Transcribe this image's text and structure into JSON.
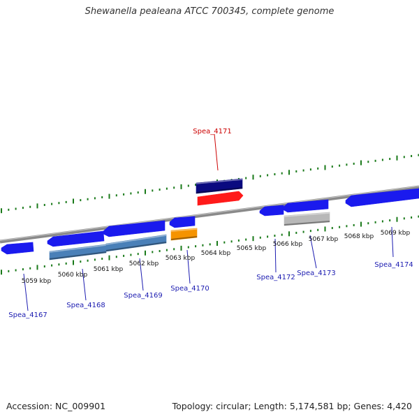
{
  "title": "Shewanella pealeana ATCC 700345, complete genome",
  "footer": {
    "accession": "Accession: NC_009901",
    "summary": "Topology: circular; Length: 5,174,581 bp; Genes: 4,420"
  },
  "colors": {
    "backbone": "#8a8a8a",
    "ticks": "#1a7a1a",
    "gene_blue": "#1a1aee",
    "gene_navy": "#0a0a80",
    "gene_red": "#ff1a1a",
    "gene_steel": "#4a80b8",
    "gene_orange": "#f59300",
    "gene_gray": "#b8b8b8",
    "label_blue": "#1a1ab0",
    "label_red": "#cc0000"
  },
  "kbp_labels": [
    {
      "text": "5059 kbp",
      "anchor": [
        52,
        405
      ]
    },
    {
      "text": "5060 kbp",
      "anchor": [
        104,
        396
      ]
    },
    {
      "text": "5061 kbp",
      "anchor": [
        155,
        388
      ]
    },
    {
      "text": "5062 kbp",
      "anchor": [
        206,
        380
      ]
    },
    {
      "text": "5063 kbp",
      "anchor": [
        258,
        372
      ]
    },
    {
      "text": "5064 kbp",
      "anchor": [
        309,
        365
      ]
    },
    {
      "text": "5065 kbp",
      "anchor": [
        360,
        358
      ]
    },
    {
      "text": "5066 kbp",
      "anchor": [
        412,
        352
      ]
    },
    {
      "text": "5067 kbp",
      "anchor": [
        463,
        345
      ]
    },
    {
      "text": "5068 kbp",
      "anchor": [
        514,
        341
      ]
    },
    {
      "text": "5069 kbp",
      "anchor": [
        566,
        336
      ]
    }
  ],
  "genes": [
    {
      "name": "Spea_4167",
      "color": "#1a1aee",
      "label_color": "#1a1ab0",
      "shape": "arrow-left",
      "poly": [
        [
          2,
          355
        ],
        [
          10,
          350
        ],
        [
          47,
          347
        ],
        [
          48,
          360
        ],
        [
          10,
          364
        ],
        [
          2,
          359
        ]
      ],
      "leader": [
        [
          34,
          392
        ],
        [
          40,
          445
        ]
      ],
      "label_pos": [
        40,
        454
      ]
    },
    {
      "name": "Spea_4168",
      "color": "#1a1aee",
      "label_color": "#1a1ab0",
      "shape": "arrow-left",
      "poly": [
        [
          68,
          345
        ],
        [
          76,
          339
        ],
        [
          148,
          331
        ],
        [
          149,
          345
        ],
        [
          76,
          353
        ],
        [
          68,
          349
        ]
      ],
      "leader": [
        [
          118,
          385
        ],
        [
          123,
          430
        ]
      ],
      "label_pos": [
        123,
        440
      ]
    },
    {
      "name": "Spea_4168-b",
      "color": "#4a80b8",
      "label_color": "#1a1ab0",
      "shape": "box",
      "poly": [
        [
          71,
          360
        ],
        [
          152,
          350
        ],
        [
          152,
          362
        ],
        [
          71,
          372
        ]
      ]
    },
    {
      "name": "Spea_4169",
      "color": "#1a1aee",
      "label_color": "#1a1ab0",
      "shape": "arrow-left",
      "poly": [
        [
          148,
          331
        ],
        [
          156,
          324
        ],
        [
          236,
          316
        ],
        [
          236,
          330
        ],
        [
          156,
          339
        ],
        [
          148,
          335
        ]
      ],
      "leader": [
        [
          200,
          370
        ],
        [
          205,
          416
        ]
      ],
      "label_pos": [
        205,
        426
      ]
    },
    {
      "name": "Spea_4169-b",
      "color": "#4a80b8",
      "label_color": "#1a1ab0",
      "shape": "box",
      "poly": [
        [
          152,
          349
        ],
        [
          238,
          336
        ],
        [
          238,
          348
        ],
        [
          152,
          360
        ]
      ]
    },
    {
      "name": "Spea_4170",
      "color": "#1a1aee",
      "label_color": "#1a1ab0",
      "shape": "arrow-left",
      "poly": [
        [
          243,
          318
        ],
        [
          250,
          312
        ],
        [
          279,
          310
        ],
        [
          279,
          323
        ],
        [
          250,
          326
        ],
        [
          243,
          322
        ]
      ],
      "leader": [
        [
          268,
          358
        ],
        [
          272,
          406
        ]
      ],
      "label_pos": [
        272,
        416
      ]
    },
    {
      "name": "Spea_4170-b",
      "color": "#f59300",
      "label_color": "#1a1ab0",
      "shape": "box",
      "poly": [
        [
          245,
          330
        ],
        [
          282,
          327
        ],
        [
          282,
          340
        ],
        [
          245,
          344
        ]
      ]
    },
    {
      "name": "Spea_4171",
      "color": "#ff1a1a",
      "label_color": "#cc0000",
      "shape": "arrow-right",
      "poly": [
        [
          283,
          282
        ],
        [
          342,
          274
        ],
        [
          348,
          280
        ],
        [
          342,
          287
        ],
        [
          283,
          294
        ]
      ],
      "leader": [
        [
          307,
          192
        ],
        [
          312,
          244
        ]
      ],
      "label_pos": [
        304,
        191
      ]
    },
    {
      "name": "Spea_4171-b",
      "color": "#0a0a80",
      "label_color": "#cc0000",
      "shape": "box",
      "poly": [
        [
          281,
          262
        ],
        [
          347,
          256
        ],
        [
          347,
          270
        ],
        [
          281,
          277
        ]
      ]
    },
    {
      "name": "Spea_4172",
      "color": "#1a1aee",
      "label_color": "#1a1ab0",
      "shape": "arrow-left",
      "poly": [
        [
          372,
          302
        ],
        [
          379,
          296
        ],
        [
          406,
          294
        ],
        [
          406,
          307
        ],
        [
          379,
          309
        ],
        [
          372,
          305
        ]
      ],
      "leader": [
        [
          394,
          342
        ],
        [
          395,
          390
        ]
      ],
      "label_pos": [
        395,
        400
      ]
    },
    {
      "name": "Spea_4173",
      "color": "#1a1aee",
      "label_color": "#1a1ab0",
      "shape": "arrow-left",
      "poly": [
        [
          405,
          297
        ],
        [
          412,
          291
        ],
        [
          470,
          286
        ],
        [
          470,
          299
        ],
        [
          412,
          304
        ],
        [
          405,
          300
        ]
      ],
      "leader": [
        [
          444,
          337
        ],
        [
          453,
          384
        ]
      ],
      "label_pos": [
        453,
        394
      ]
    },
    {
      "name": "Spea_4173-b",
      "color": "#b8b8b8",
      "label_color": "#1a1ab0",
      "shape": "box",
      "poly": [
        [
          407,
          309
        ],
        [
          472,
          304
        ],
        [
          472,
          318
        ],
        [
          407,
          323
        ]
      ]
    },
    {
      "name": "Spea_4174",
      "color": "#1a1aee",
      "label_color": "#1a1ab0",
      "shape": "arrow-left",
      "poly": [
        [
          495,
          287
        ],
        [
          503,
          280
        ],
        [
          600,
          270
        ],
        [
          600,
          284
        ],
        [
          503,
          296
        ],
        [
          495,
          291
        ]
      ],
      "leader": [
        [
          561,
          325
        ],
        [
          563,
          368
        ]
      ],
      "label_pos": [
        564,
        382
      ]
    }
  ]
}
